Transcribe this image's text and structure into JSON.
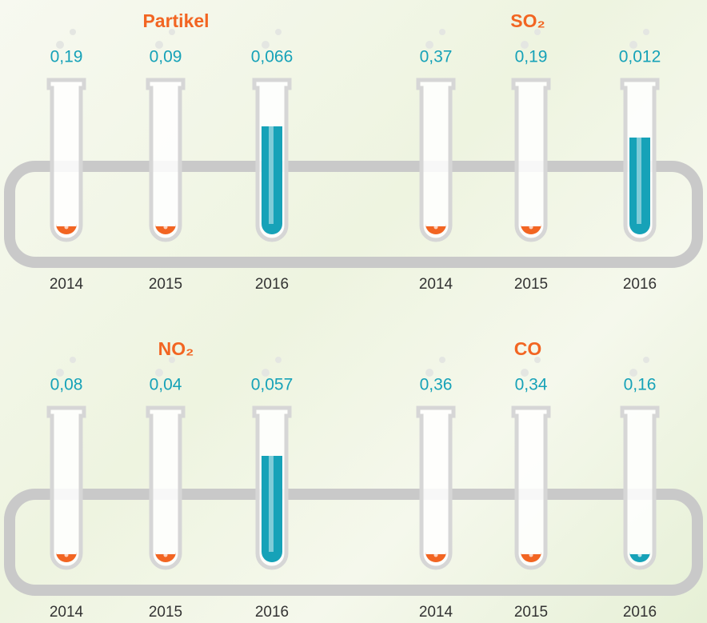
{
  "groups": [
    {
      "title": "Partikel",
      "items": [
        {
          "value": "0,19",
          "year": "2014"
        },
        {
          "value": "0,09",
          "year": "2015"
        },
        {
          "value": "0,066",
          "year": "2016"
        }
      ]
    },
    {
      "title": "SO₂",
      "items": [
        {
          "value": "0,37",
          "year": "2014"
        },
        {
          "value": "0,19",
          "year": "2015"
        },
        {
          "value": "0,012",
          "year": "2016"
        }
      ]
    },
    {
      "title": "NO₂",
      "items": [
        {
          "value": "0,08",
          "year": "2014"
        },
        {
          "value": "0,04",
          "year": "2015"
        },
        {
          "value": "0,057",
          "year": "2016"
        }
      ]
    },
    {
      "title": "CO",
      "items": [
        {
          "value": "0,36",
          "year": "2014"
        },
        {
          "value": "0,34",
          "year": "2015"
        },
        {
          "value": "0,16",
          "year": "2016"
        }
      ]
    }
  ]
}
